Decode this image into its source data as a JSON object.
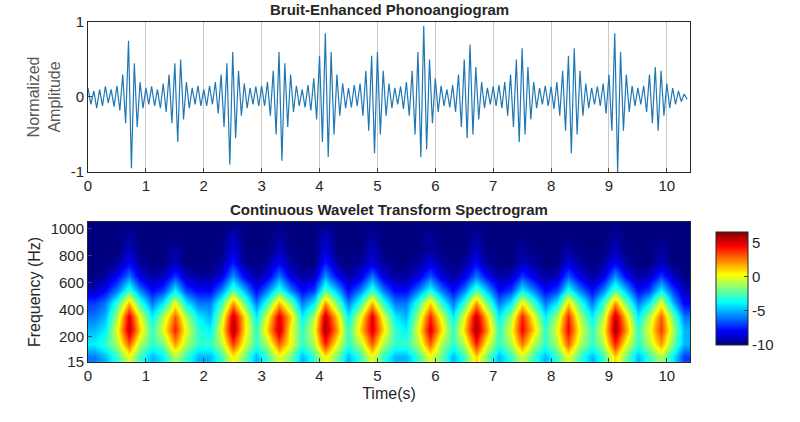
{
  "chart_data": [
    {
      "type": "line",
      "title": "Bruit-Enhanced Phonoangiogram",
      "y_label": "Normalized Amplitude",
      "color": "#1f77b4",
      "xlim": [
        0,
        10.4
      ],
      "xticks": [
        0,
        1,
        2,
        3,
        4,
        5,
        6,
        7,
        8,
        9,
        10
      ],
      "ylim": [
        -1,
        1
      ],
      "yticks": [
        -1,
        0,
        1
      ],
      "grid": true,
      "x": [
        0,
        0.05,
        0.1,
        0.15,
        0.2,
        0.25,
        0.3,
        0.35,
        0.4,
        0.45,
        0.5,
        0.55,
        0.6,
        0.65,
        0.7,
        0.75,
        0.8,
        0.85,
        0.9,
        0.95,
        1,
        1.05,
        1.1,
        1.15,
        1.2,
        1.25,
        1.3,
        1.35,
        1.4,
        1.45,
        1.5,
        1.55,
        1.6,
        1.65,
        1.7,
        1.75,
        1.8,
        1.85,
        1.9,
        1.95,
        2,
        2.05,
        2.1,
        2.15,
        2.2,
        2.25,
        2.3,
        2.35,
        2.4,
        2.45,
        2.5,
        2.55,
        2.6,
        2.65,
        2.7,
        2.75,
        2.8,
        2.85,
        2.9,
        2.95,
        3,
        3.05,
        3.1,
        3.15,
        3.2,
        3.25,
        3.3,
        3.35,
        3.4,
        3.45,
        3.5,
        3.55,
        3.6,
        3.65,
        3.7,
        3.75,
        3.8,
        3.85,
        3.9,
        3.95,
        4,
        4.05,
        4.1,
        4.15,
        4.2,
        4.25,
        4.3,
        4.35,
        4.4,
        4.45,
        4.5,
        4.55,
        4.6,
        4.65,
        4.7,
        4.75,
        4.8,
        4.85,
        4.9,
        4.95,
        5,
        5.05,
        5.1,
        5.15,
        5.2,
        5.25,
        5.3,
        5.35,
        5.4,
        5.45,
        5.5,
        5.55,
        5.6,
        5.65,
        5.7,
        5.75,
        5.8,
        5.85,
        5.9,
        5.95,
        6,
        6.05,
        6.1,
        6.15,
        6.2,
        6.25,
        6.3,
        6.35,
        6.4,
        6.45,
        6.5,
        6.55,
        6.6,
        6.65,
        6.7,
        6.75,
        6.8,
        6.85,
        6.9,
        6.95,
        7,
        7.05,
        7.1,
        7.15,
        7.2,
        7.25,
        7.3,
        7.35,
        7.4,
        7.45,
        7.5,
        7.55,
        7.6,
        7.65,
        7.7,
        7.75,
        7.8,
        7.85,
        7.9,
        7.95,
        8,
        8.05,
        8.1,
        8.15,
        8.2,
        8.25,
        8.3,
        8.35,
        8.4,
        8.45,
        8.5,
        8.55,
        8.6,
        8.65,
        8.7,
        8.75,
        8.8,
        8.85,
        8.9,
        8.95,
        9,
        9.05,
        9.1,
        9.15,
        9.2,
        9.25,
        9.3,
        9.35,
        9.4,
        9.45,
        9.5,
        9.55,
        9.6,
        9.65,
        9.7,
        9.75,
        9.8,
        9.85,
        9.9,
        9.95,
        10,
        10.05,
        10.1,
        10.15,
        10.2,
        10.25,
        10.3,
        10.35
      ],
      "values": [
        0.12,
        -0.1,
        0.08,
        -0.15,
        0.1,
        -0.12,
        0.14,
        -0.08,
        0.1,
        -0.13,
        0.15,
        -0.18,
        0.3,
        -0.35,
        0.75,
        -0.95,
        0.45,
        -0.4,
        0.2,
        -0.15,
        0.12,
        -0.1,
        0.14,
        -0.12,
        0.1,
        -0.15,
        0.18,
        -0.2,
        0.3,
        -0.35,
        0.45,
        -0.6,
        0.5,
        -0.3,
        0.2,
        -0.15,
        0.12,
        -0.1,
        0.15,
        -0.12,
        0.1,
        -0.12,
        0.15,
        -0.1,
        0.2,
        -0.22,
        0.3,
        -0.4,
        0.45,
        -0.9,
        0.6,
        -0.55,
        0.35,
        -0.25,
        0.18,
        -0.15,
        0.12,
        -0.1,
        0.14,
        -0.12,
        0.15,
        -0.12,
        0.2,
        -0.25,
        0.35,
        -0.5,
        0.6,
        -0.85,
        0.45,
        -0.4,
        0.3,
        -0.2,
        0.15,
        -0.12,
        0.1,
        -0.14,
        0.16,
        -0.18,
        0.25,
        -0.3,
        0.55,
        -0.6,
        0.85,
        -0.8,
        0.6,
        -0.5,
        0.3,
        -0.25,
        0.18,
        -0.15,
        0.12,
        -0.14,
        0.16,
        -0.12,
        0.18,
        -0.25,
        0.35,
        -0.45,
        0.55,
        -0.75,
        0.6,
        -0.5,
        0.35,
        -0.25,
        0.18,
        -0.15,
        0.12,
        -0.1,
        0.14,
        -0.16,
        0.2,
        -0.25,
        0.35,
        -0.5,
        0.6,
        -0.8,
        0.95,
        -0.7,
        0.5,
        -0.35,
        0.25,
        -0.2,
        0.15,
        -0.12,
        0.1,
        -0.14,
        0.16,
        -0.2,
        0.3,
        -0.4,
        0.5,
        -0.55,
        0.7,
        -0.5,
        0.4,
        -0.3,
        0.2,
        -0.15,
        0.12,
        -0.1,
        0.14,
        -0.12,
        0.16,
        -0.15,
        0.2,
        -0.25,
        0.3,
        -0.4,
        0.5,
        -0.6,
        0.65,
        -0.5,
        0.4,
        -0.3,
        0.2,
        -0.15,
        0.12,
        -0.1,
        0.15,
        -0.12,
        0.14,
        -0.16,
        0.2,
        -0.25,
        0.35,
        -0.45,
        0.55,
        -0.75,
        0.65,
        -0.5,
        0.35,
        -0.25,
        0.18,
        -0.15,
        0.12,
        -0.1,
        0.14,
        -0.12,
        0.18,
        -0.22,
        0.3,
        -0.45,
        0.85,
        -1.0,
        0.6,
        -0.45,
        0.3,
        -0.2,
        0.15,
        -0.12,
        0.12,
        -0.1,
        0.15,
        -0.2,
        0.3,
        -0.35,
        0.4,
        -0.45,
        0.35,
        -0.25,
        0.18,
        -0.15,
        0.12,
        -0.1,
        0.08,
        -0.06,
        0.04,
        -0.03
      ]
    },
    {
      "type": "heatmap",
      "title": "Continuous Wavelet Transform Spectrogram",
      "x_label": "Time(s)",
      "y_label": "Frequency (Hz)",
      "color": "jet",
      "xlim": [
        0,
        10.4
      ],
      "xticks": [
        0,
        1,
        2,
        3,
        4,
        5,
        6,
        7,
        8,
        9,
        10
      ],
      "ylim": [
        15,
        1050
      ],
      "yticks": [
        15,
        200,
        400,
        600,
        800,
        1000
      ],
      "grid": false,
      "zlim": [
        -10,
        6.5
      ],
      "zticks": [
        -10,
        -5,
        0,
        5
      ],
      "x": [
        0.1,
        0.3,
        0.5,
        0.7,
        0.9,
        1.1,
        1.3,
        1.5,
        1.7,
        1.9,
        2.1,
        2.3,
        2.5,
        2.7,
        2.9,
        3.1,
        3.3,
        3.5,
        3.7,
        3.9,
        4.1,
        4.3,
        4.5,
        4.7,
        4.9,
        5.1,
        5.3,
        5.5,
        5.7,
        5.9,
        6.1,
        6.3,
        6.5,
        6.7,
        6.9,
        7.1,
        7.3,
        7.5,
        7.7,
        7.9,
        8.1,
        8.3,
        8.5,
        8.7,
        8.9,
        9.1,
        9.3,
        9.5,
        9.7,
        9.9,
        10.1,
        10.3
      ],
      "y": [
        50,
        150,
        250,
        350,
        450,
        550,
        650,
        750,
        850,
        950,
        1050
      ],
      "z": [
        [
          -6,
          -5,
          -3,
          0,
          -3,
          -5,
          -4,
          -1,
          -3,
          -5,
          -5,
          -3,
          0.5,
          -2,
          -5,
          -3,
          0,
          -2,
          -5,
          -3,
          0.5,
          -2,
          -5,
          -3,
          0,
          -3,
          -5,
          -5,
          -3,
          0,
          -2,
          -5,
          -3,
          1,
          -2,
          -5,
          -3,
          -0.5,
          -3,
          -5,
          -3,
          0,
          -3,
          -5,
          -3,
          1,
          -2,
          -5,
          -3,
          -1,
          -4,
          -7
        ],
        [
          -4,
          -3,
          -1,
          3,
          -1,
          -3,
          -2,
          2,
          -1,
          -3,
          -3,
          -1,
          3.5,
          0,
          -3,
          -1,
          3,
          0,
          -3,
          -1,
          4,
          0,
          -3,
          -1,
          3,
          -1,
          -3,
          -3,
          -1,
          3,
          -1,
          -3,
          -1,
          4,
          0,
          -3,
          -1,
          2.5,
          -1,
          -3,
          -1,
          3,
          -1,
          -3,
          -1,
          4,
          0,
          -3,
          -1,
          2,
          -2,
          -5
        ],
        [
          -5,
          -4,
          0,
          5.5,
          1,
          -3,
          0,
          4,
          0,
          -3,
          -4,
          0,
          6,
          1,
          -3,
          1,
          5.5,
          0,
          -3,
          0,
          6,
          2,
          -3,
          1,
          5,
          1,
          -3,
          -4,
          0,
          5,
          1,
          -3,
          1,
          6,
          2,
          -3,
          0,
          4.5,
          1,
          -3,
          0,
          4.5,
          0,
          -3,
          0,
          6,
          2,
          -3,
          0,
          3.5,
          -1,
          -5
        ],
        [
          -6,
          -5,
          -1,
          5,
          0,
          -4,
          -1,
          3,
          -1,
          -4,
          -5,
          -1,
          5.5,
          1,
          -4,
          0,
          5,
          1,
          -4,
          -1,
          5.5,
          1,
          -4,
          0,
          5,
          0,
          -4,
          -5,
          -1,
          4,
          0,
          -4,
          0,
          5.5,
          1,
          -4,
          -1,
          4,
          0,
          -4,
          -1,
          4,
          -1,
          -4,
          -1,
          5.5,
          1,
          -4,
          -1,
          3,
          -2,
          -6
        ],
        [
          -7,
          -6,
          -3,
          1.5,
          -3,
          -6,
          -4,
          0,
          -4,
          -6,
          -6,
          -3,
          2,
          -2,
          -6,
          -3,
          1.5,
          -2,
          -6,
          -4,
          2,
          -2,
          -6,
          -3,
          1.5,
          -3,
          -6,
          -6,
          -3,
          1,
          -3,
          -6,
          -3,
          2,
          -2,
          -6,
          -4,
          0.5,
          -3,
          -6,
          -4,
          1,
          -3,
          -6,
          -3,
          2,
          -2,
          -6,
          -4,
          0,
          -5,
          -8
        ],
        [
          -9,
          -8,
          -6,
          -3,
          -6,
          -8,
          -7,
          -4,
          -7,
          -8,
          -8,
          -6,
          -2.5,
          -5,
          -8,
          -6,
          -3,
          -6,
          -8,
          -7,
          -2.5,
          -5,
          -8,
          -6,
          -3,
          -6,
          -8,
          -8,
          -6,
          -3.5,
          -6,
          -8,
          -6,
          -2.5,
          -5,
          -8,
          -7,
          -4,
          -6,
          -8,
          -7,
          -3.5,
          -6,
          -8,
          -6,
          -2.5,
          -5,
          -8,
          -7,
          -4,
          -7,
          -9
        ],
        [
          -10,
          -9.5,
          -8,
          -6,
          -8.5,
          -9.5,
          -9,
          -7,
          -9,
          -9.5,
          -9.5,
          -8.5,
          -5.5,
          -8,
          -9.5,
          -8.5,
          -6,
          -8.5,
          -9.5,
          -9,
          -5.5,
          -8,
          -9.5,
          -8.5,
          -6,
          -8.5,
          -9.5,
          -9.5,
          -8.5,
          -6.5,
          -8.5,
          -9.5,
          -8.5,
          -6,
          -8,
          -9.5,
          -9,
          -7,
          -8.5,
          -9.5,
          -9,
          -6.5,
          -8.5,
          -9.5,
          -8.5,
          -5.5,
          -8,
          -9.5,
          -9,
          -7,
          -9,
          -10
        ],
        [
          -10,
          -10,
          -9.5,
          -8,
          -9.5,
          -10,
          -10,
          -9,
          -10,
          -10,
          -10,
          -9.5,
          -7.5,
          -9.5,
          -10,
          -9.5,
          -8,
          -9.5,
          -10,
          -10,
          -7.5,
          -9.5,
          -10,
          -9.5,
          -8.5,
          -9.5,
          -10,
          -10,
          -9.5,
          -8.5,
          -9.5,
          -10,
          -9.5,
          -8,
          -9.5,
          -10,
          -10,
          -9,
          -9.5,
          -10,
          -10,
          -8.5,
          -9.5,
          -10,
          -9.5,
          -8,
          -9.5,
          -10,
          -10,
          -9,
          -10,
          -10
        ],
        [
          -10,
          -10,
          -10,
          -9,
          -10,
          -10,
          -10,
          -9.5,
          -10,
          -10,
          -10,
          -10,
          -8.5,
          -10,
          -10,
          -10,
          -9,
          -10,
          -10,
          -10,
          -8.5,
          -10,
          -10,
          -10,
          -9,
          -10,
          -10,
          -10,
          -10,
          -9.5,
          -10,
          -10,
          -10,
          -9,
          -10,
          -10,
          -10,
          -9.5,
          -10,
          -10,
          -10,
          -9.5,
          -10,
          -10,
          -10,
          -9,
          -10,
          -10,
          -10,
          -9.5,
          -10,
          -10
        ],
        [
          -10,
          -10,
          -10,
          -9.5,
          -10,
          -10,
          -10,
          -10,
          -10,
          -10,
          -10,
          -10,
          -9,
          -10,
          -10,
          -10,
          -9.5,
          -10,
          -10,
          -10,
          -9,
          -10,
          -10,
          -10,
          -9.5,
          -10,
          -10,
          -10,
          -10,
          -9.5,
          -10,
          -10,
          -10,
          -9.5,
          -10,
          -10,
          -10,
          -10,
          -10,
          -10,
          -10,
          -10,
          -10,
          -10,
          -10,
          -9.5,
          -10,
          -10,
          -10,
          -10,
          -10,
          -10
        ],
        [
          -10,
          -10,
          -10,
          -10,
          -10,
          -10,
          -10,
          -10,
          -10,
          -10,
          -10,
          -10,
          -10,
          -10,
          -10,
          -10,
          -10,
          -10,
          -10,
          -10,
          -10,
          -10,
          -10,
          -10,
          -10,
          -10,
          -10,
          -10,
          -10,
          -10,
          -10,
          -10,
          -10,
          -10,
          -10,
          -10,
          -10,
          -10,
          -10,
          -10,
          -10,
          -10,
          -10,
          -10,
          -10,
          -10,
          -10,
          -10,
          -10,
          -10,
          -10,
          -10
        ]
      ]
    }
  ]
}
